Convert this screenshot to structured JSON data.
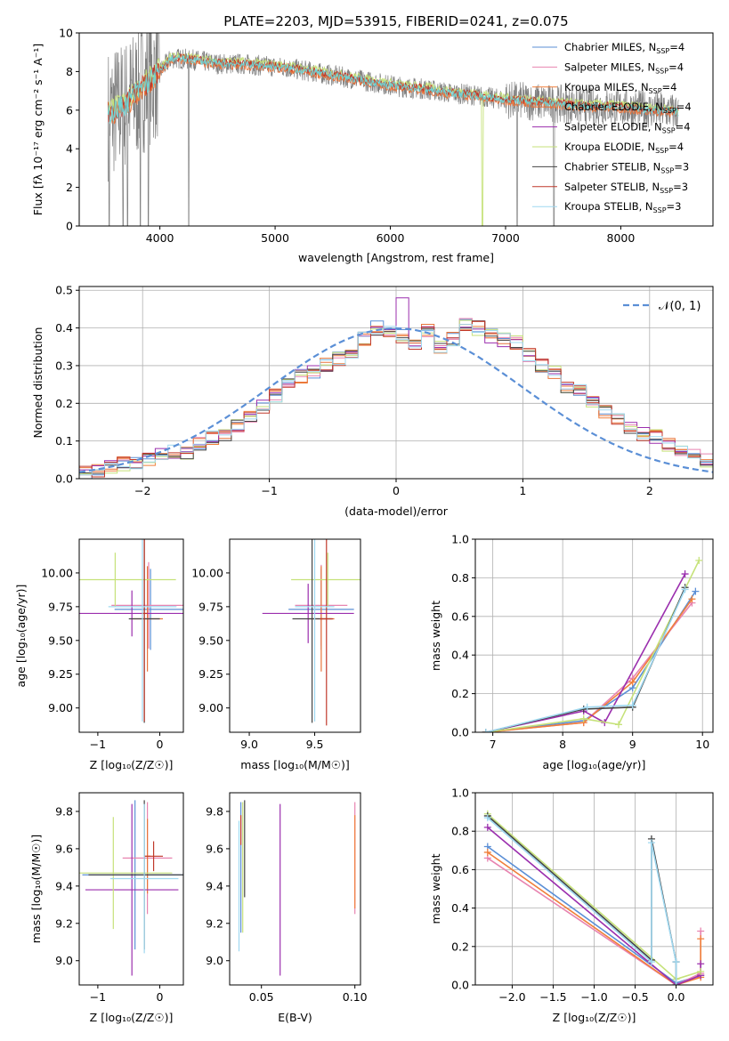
{
  "figure_title": "PLATE=2203, MJD=53915, FIBERID=0241, z=0.075",
  "colors": {
    "chabrier_miles": "#5b8fd6",
    "salpeter_miles": "#e884b0",
    "kroupa_miles": "#f07f3a",
    "chabrier_elodie": "#e8743b",
    "salpeter_elodie": "#9b2fae",
    "kroupa_elodie": "#c6e27a",
    "chabrier_stelib": "#444444",
    "salpeter_stelib": "#c0392b",
    "kroupa_stelib": "#9fd8f0",
    "data": "#808080",
    "cyan_model": "#6fd4d4",
    "normal": "#5b8fd6",
    "grid": "#b0b0b0"
  },
  "chart_data": [
    {
      "id": "spectrum",
      "type": "line",
      "title": "PLATE=2203, MJD=53915, FIBERID=0241, z=0.075",
      "xlabel": "wavelength [Angstrom, rest frame]",
      "ylabel": "Flux [fλ 10⁻¹⁷ erg cm⁻² s⁻¹ A⁻¹]",
      "xlim": [
        3300,
        8800
      ],
      "ylim": [
        0,
        10
      ],
      "xticks": [
        "4000",
        "5000",
        "6000",
        "7000",
        "8000"
      ],
      "yticks": [
        "0",
        "2",
        "4",
        "6",
        "8",
        "10"
      ],
      "legend_position": "upper right",
      "legend": [
        "Chabrier MILES, Nₛₛₚ=4",
        "Salpeter MILES, Nₛₛₚ=4",
        "Kroupa MILES, Nₛₛₚ=4",
        "Chabrier ELODIE, Nₛₛₚ=4",
        "Salpeter ELODIE, Nₛₛₚ=4",
        "Kroupa ELODIE, Nₛₛₚ=4",
        "Chabrier STELIB, Nₛₛₚ=3",
        "Salpeter STELIB, Nₛₛₚ=3",
        "Kroupa STELIB, Nₛₛₚ=3"
      ],
      "legend_labels": [
        {
          "main": "Chabrier MILES, N",
          "sub": "SSP",
          "tail": "=4"
        },
        {
          "main": "Salpeter MILES, N",
          "sub": "SSP",
          "tail": "=4"
        },
        {
          "main": "Kroupa MILES, N",
          "sub": "SSP",
          "tail": "=4"
        },
        {
          "main": "Chabrier ELODIE, N",
          "sub": "SSP",
          "tail": "=4"
        },
        {
          "main": "Salpeter ELODIE, N",
          "sub": "SSP",
          "tail": "=4"
        },
        {
          "main": "Kroupa ELODIE, N",
          "sub": "SSP",
          "tail": "=4"
        },
        {
          "main": "Chabrier STELIB, N",
          "sub": "SSP",
          "tail": "=3"
        },
        {
          "main": "Salpeter STELIB, N",
          "sub": "SSP",
          "tail": "=3"
        },
        {
          "main": "Kroupa STELIB, N",
          "sub": "SSP",
          "tail": "=3"
        }
      ],
      "model_continuum": {
        "x": [
          3550,
          3700,
          3850,
          4000,
          4100,
          4300,
          4500,
          4700,
          4900,
          5100,
          5300,
          5500,
          5700,
          5900,
          6100,
          6300,
          6500,
          6700,
          6900,
          7100,
          7300,
          7500,
          7700,
          7900,
          8100,
          8300,
          8500
        ],
        "y": [
          5.8,
          6.3,
          7.2,
          8.0,
          8.7,
          8.6,
          8.4,
          8.4,
          8.3,
          8.2,
          8.0,
          7.8,
          7.6,
          7.4,
          7.2,
          7.1,
          6.9,
          6.8,
          6.6,
          6.5,
          6.4,
          6.3,
          6.2,
          6.2,
          6.1,
          6.0,
          5.9
        ]
      },
      "data_dropouts": [
        3560,
        3680,
        3720,
        3830,
        3900,
        4250,
        7100,
        7420
      ]
    },
    {
      "id": "residuals",
      "type": "area",
      "xlabel": "(data-model)/error",
      "ylabel": "Normed distribution",
      "xlim": [
        -2.5,
        2.5
      ],
      "ylim": [
        0,
        0.51
      ],
      "xticks": [
        "−2",
        "−1",
        "0",
        "1",
        "2"
      ],
      "yticks": [
        "0.0",
        "0.1",
        "0.2",
        "0.3",
        "0.4",
        "0.5"
      ],
      "legend": [
        "𝒩(0, 1)"
      ],
      "bin_edges_start": -2.5,
      "bin_width": 0.1,
      "histogram_reference": [
        0.02,
        0.02,
        0.03,
        0.04,
        0.04,
        0.05,
        0.06,
        0.07,
        0.07,
        0.09,
        0.11,
        0.12,
        0.14,
        0.17,
        0.19,
        0.22,
        0.25,
        0.27,
        0.28,
        0.3,
        0.32,
        0.34,
        0.37,
        0.4,
        0.39,
        0.38,
        0.36,
        0.39,
        0.35,
        0.37,
        0.41,
        0.4,
        0.38,
        0.37,
        0.36,
        0.33,
        0.3,
        0.28,
        0.24,
        0.23,
        0.2,
        0.18,
        0.16,
        0.13,
        0.12,
        0.11,
        0.09,
        0.07,
        0.06,
        0.05
      ]
    },
    {
      "id": "z_age",
      "type": "scatter",
      "xlabel": "Z [log₁₀(Z/Z☉)]",
      "ylabel": "age  [log₁₀(age/yr)]",
      "xlim": [
        -1.3,
        0.38
      ],
      "ylim": [
        8.82,
        10.25
      ],
      "xticks": [
        "−1",
        "0"
      ],
      "yticks": [
        "9.00",
        "9.25",
        "9.50",
        "9.75",
        "10.00"
      ],
      "points": [
        {
          "x": -0.15,
          "y": 9.73,
          "xerr": 0.58,
          "yerr": 0.3,
          "color": "chabrier_miles"
        },
        {
          "x": -0.18,
          "y": 9.76,
          "xerr": 0.6,
          "yerr": 0.32,
          "color": "salpeter_miles"
        },
        {
          "x": -0.2,
          "y": 9.66,
          "xerr": 0.25,
          "yerr": 0.39,
          "color": "chabrier_elodie"
        },
        {
          "x": -0.45,
          "y": 9.7,
          "xerr": 0.9,
          "yerr": 0.17,
          "color": "salpeter_elodie"
        },
        {
          "x": -0.72,
          "y": 9.95,
          "xerr": 0.98,
          "yerr": 0.2,
          "color": "kroupa_elodie"
        },
        {
          "x": -0.25,
          "y": 9.66,
          "xerr": 0.25,
          "yerr": 0.77,
          "color": "chabrier_stelib"
        },
        {
          "x": -0.25,
          "y": 9.7,
          "xerr": 0.05,
          "yerr": 0.8,
          "color": "salpeter_stelib"
        },
        {
          "x": -0.28,
          "y": 9.75,
          "xerr": 0.55,
          "yerr": 0.85,
          "color": "kroupa_stelib"
        }
      ]
    },
    {
      "id": "mass_age",
      "type": "scatter",
      "xlabel": "mass [log₁₀(M/M☉)]",
      "ylabel": "",
      "xlim": [
        8.85,
        9.85
      ],
      "ylim": [
        8.82,
        10.25
      ],
      "xticks": [
        "9.0",
        "9.5"
      ],
      "yticks": [
        "9.00",
        "9.25",
        "9.50",
        "9.75",
        "10.00"
      ],
      "points": [
        {
          "x": 9.55,
          "y": 9.73,
          "xerr": 0.25,
          "yerr": 0.3,
          "color": "chabrier_miles"
        },
        {
          "x": 9.55,
          "y": 9.76,
          "xerr": 0.2,
          "yerr": 0.3,
          "color": "salpeter_miles"
        },
        {
          "x": 9.55,
          "y": 9.66,
          "xerr": 0.1,
          "yerr": 0.39,
          "color": "chabrier_elodie"
        },
        {
          "x": 9.45,
          "y": 9.7,
          "xerr": 0.35,
          "yerr": 0.22,
          "color": "salpeter_elodie"
        },
        {
          "x": 9.6,
          "y": 9.95,
          "xerr": 0.28,
          "yerr": 0.2,
          "color": "kroupa_elodie"
        },
        {
          "x": 9.48,
          "y": 9.66,
          "xerr": 0.15,
          "yerr": 0.77,
          "color": "chabrier_stelib"
        },
        {
          "x": 9.59,
          "y": 9.66,
          "xerr": 0.05,
          "yerr": 0.79,
          "color": "salpeter_stelib"
        },
        {
          "x": 9.5,
          "y": 9.75,
          "xerr": 0.15,
          "yerr": 0.85,
          "color": "kroupa_stelib"
        }
      ]
    },
    {
      "id": "age_weight",
      "type": "line",
      "xlabel": "age  [log₁₀(age/yr)]",
      "ylabel": "mass weight",
      "xlim": [
        6.75,
        10.15
      ],
      "ylim": [
        0,
        1.0
      ],
      "xticks": [
        "7",
        "8",
        "9",
        "10"
      ],
      "yticks": [
        "0.0",
        "0.2",
        "0.4",
        "0.6",
        "0.8",
        "1.0"
      ],
      "series": [
        {
          "color": "chabrier_miles",
          "x": [
            6.9,
            8.3,
            9.0,
            9.9
          ],
          "y": [
            0.0,
            0.06,
            0.23,
            0.73
          ]
        },
        {
          "color": "salpeter_miles",
          "x": [
            6.9,
            8.3,
            9.0,
            9.85
          ],
          "y": [
            0.0,
            0.05,
            0.28,
            0.67
          ]
        },
        {
          "color": "kroupa_miles",
          "x": [
            6.9,
            8.3,
            9.0,
            9.85
          ],
          "y": [
            0.0,
            0.05,
            0.26,
            0.69
          ]
        },
        {
          "color": "salpeter_elodie",
          "x": [
            6.9,
            8.3,
            8.6,
            9.75
          ],
          "y": [
            0.0,
            0.11,
            0.05,
            0.82
          ]
        },
        {
          "color": "kroupa_elodie",
          "x": [
            6.9,
            8.3,
            8.8,
            9.95
          ],
          "y": [
            0.0,
            0.07,
            0.04,
            0.89
          ]
        },
        {
          "color": "chabrier_stelib",
          "x": [
            6.9,
            8.3,
            9.0,
            9.75
          ],
          "y": [
            0.0,
            0.12,
            0.13,
            0.75
          ]
        },
        {
          "color": "kroupa_stelib",
          "x": [
            6.9,
            8.35,
            9.0,
            9.75
          ],
          "y": [
            0.0,
            0.13,
            0.14,
            0.74
          ]
        }
      ]
    },
    {
      "id": "z_mass",
      "type": "scatter",
      "xlabel": "Z [log₁₀(Z/Z☉)]",
      "ylabel": "mass [log₁₀(M/M☉)]",
      "xlim": [
        -1.3,
        0.38
      ],
      "ylim": [
        8.87,
        9.9
      ],
      "xticks": [
        "−1",
        "0"
      ],
      "yticks": [
        "9.0",
        "9.2",
        "9.4",
        "9.6",
        "9.8"
      ],
      "points": [
        {
          "x": -0.4,
          "y": 9.46,
          "xerr": 0.85,
          "yerr": 0.4,
          "color": "chabrier_miles"
        },
        {
          "x": -0.2,
          "y": 9.55,
          "xerr": 0.4,
          "yerr": 0.3,
          "color": "salpeter_miles"
        },
        {
          "x": -0.2,
          "y": 9.56,
          "xerr": 0.05,
          "yerr": 0.2,
          "color": "chabrier_elodie"
        },
        {
          "x": -0.45,
          "y": 9.38,
          "xerr": 0.75,
          "yerr": 0.46,
          "color": "salpeter_elodie"
        },
        {
          "x": -0.75,
          "y": 9.47,
          "xerr": 0.95,
          "yerr": 0.3,
          "color": "kroupa_elodie"
        },
        {
          "x": -0.25,
          "y": 9.46,
          "xerr": 0.9,
          "yerr": 0.4,
          "color": "chabrier_stelib"
        },
        {
          "x": -0.1,
          "y": 9.56,
          "xerr": 0.15,
          "yerr": 0.08,
          "color": "salpeter_stelib"
        },
        {
          "x": -0.25,
          "y": 9.44,
          "xerr": 0.55,
          "yerr": 0.4,
          "color": "kroupa_stelib"
        }
      ]
    },
    {
      "id": "ebv_mass",
      "type": "scatter",
      "xlabel": "E(B-V)",
      "ylabel": "",
      "xlim": [
        0.033,
        0.103
      ],
      "ylim": [
        8.87,
        9.9
      ],
      "xticks": [
        "0.05",
        "0.10"
      ],
      "yticks": [
        "9.0",
        "9.2",
        "9.4",
        "9.6",
        "9.8"
      ],
      "points": [
        {
          "x": 0.039,
          "y": 9.5,
          "xerr": 0.0,
          "yerr": 0.35,
          "color": "chabrier_miles"
        },
        {
          "x": 0.1,
          "y": 9.55,
          "xerr": 0.0,
          "yerr": 0.3,
          "color": "salpeter_miles"
        },
        {
          "x": 0.1,
          "y": 9.53,
          "xerr": 0.0,
          "yerr": 0.25,
          "color": "kroupa_miles"
        },
        {
          "x": 0.06,
          "y": 9.38,
          "xerr": 0.0,
          "yerr": 0.46,
          "color": "salpeter_elodie"
        },
        {
          "x": 0.04,
          "y": 9.5,
          "xerr": 0.0,
          "yerr": 0.35,
          "color": "kroupa_elodie"
        },
        {
          "x": 0.041,
          "y": 9.6,
          "xerr": 0.0,
          "yerr": 0.26,
          "color": "chabrier_stelib"
        },
        {
          "x": 0.039,
          "y": 9.7,
          "xerr": 0.0,
          "yerr": 0.08,
          "color": "salpeter_stelib"
        },
        {
          "x": 0.038,
          "y": 9.4,
          "xerr": 0.0,
          "yerr": 0.35,
          "color": "kroupa_stelib"
        }
      ]
    },
    {
      "id": "z_weight",
      "type": "line",
      "xlabel": "Z [log₁₀(Z/Z☉)]",
      "ylabel": "mass weight",
      "xlim": [
        -2.45,
        0.45
      ],
      "ylim": [
        0,
        1.0
      ],
      "xticks": [
        "−2.0",
        "−1.5",
        "−1.0",
        "−0.5",
        "0.0"
      ],
      "yticks": [
        "0.0",
        "0.2",
        "0.4",
        "0.6",
        "0.8",
        "1.0"
      ],
      "series": [
        {
          "color": "chabrier_miles",
          "x": [
            -2.3,
            0.0,
            0.3
          ],
          "y": [
            0.72,
            0.01,
            0.05
          ]
        },
        {
          "color": "salpeter_miles",
          "x": [
            -2.3,
            0.0,
            0.3,
            0.3
          ],
          "y": [
            0.66,
            0.0,
            0.06,
            0.28
          ]
        },
        {
          "color": "kroupa_miles",
          "x": [
            -2.3,
            0.0,
            0.3,
            0.3
          ],
          "y": [
            0.69,
            0.0,
            0.04,
            0.24
          ]
        },
        {
          "color": "salpeter_elodie",
          "x": [
            -2.3,
            0.0,
            0.3,
            0.3
          ],
          "y": [
            0.82,
            0.0,
            0.05,
            0.11
          ]
        },
        {
          "color": "kroupa_elodie",
          "x": [
            -2.3,
            0.0,
            0.3
          ],
          "y": [
            0.89,
            0.03,
            0.07
          ]
        },
        {
          "color": "chabrier_stelib",
          "x": [
            -2.3,
            -0.3,
            -0.3,
            0.0,
            0.0
          ],
          "y": [
            0.88,
            0.13,
            0.76,
            0.12,
            0.0
          ]
        },
        {
          "color": "kroupa_stelib",
          "x": [
            -2.3,
            -0.3,
            -0.3,
            0.0,
            0.0
          ],
          "y": [
            0.87,
            0.12,
            0.74,
            0.12,
            0.0
          ]
        }
      ]
    }
  ]
}
